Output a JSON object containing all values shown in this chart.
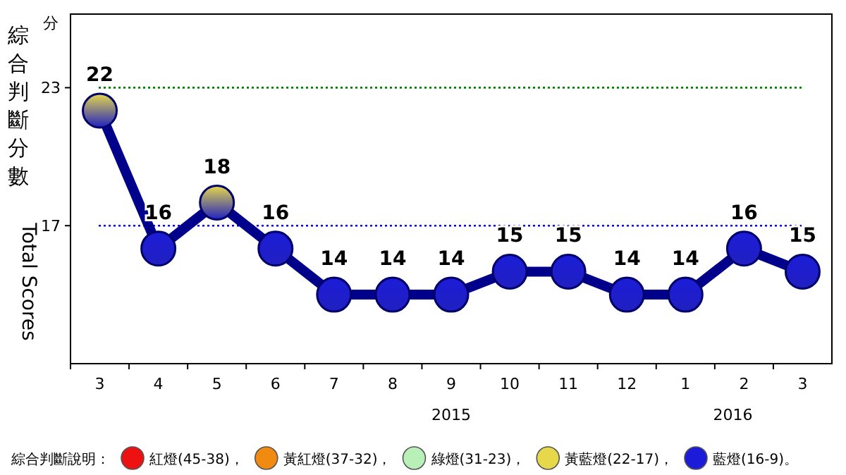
{
  "chart_data": {
    "type": "line",
    "ylabel": "綜合判斷分數",
    "categories": [
      "3",
      "4",
      "5",
      "6",
      "7",
      "8",
      "9",
      "10",
      "11",
      "12",
      "1",
      "2",
      "3"
    ],
    "series": [
      {
        "color": "#00008b",
        "values": [
          22,
          16,
          18,
          16,
          14,
          14,
          14,
          15,
          15,
          14,
          14,
          16,
          15
        ],
        "colors": [
          "#e6d84a",
          "#1c1cd8",
          "#e6d84a",
          "#1c1cd8",
          "#1c1cd8",
          "#1c1cd8",
          "#1c1cd8",
          "#1c1cd8",
          "#1c1cd8",
          "#1c1cd8",
          "#1c1cd8",
          "#1c1cd8",
          "#1c1cd8"
        ]
      }
    ],
    "ylim": [
      11,
      26.2
    ],
    "yticks": [
      17,
      23
    ],
    "marker": "circle",
    "data_labels": true,
    "ref_lines": [
      {
        "axis": "y",
        "value": 23,
        "color": "#008000",
        "line_style": "dotted"
      },
      {
        "axis": "y",
        "value": 17,
        "color": "#0000ff",
        "line_style": "dotted"
      }
    ],
    "annotations": [
      "分",
      "Total Scores",
      "綜合判斷說明：",
      "紅燈(45-38)，",
      "黃紅燈(37-32)，",
      "綠燈(31-23)，",
      "黃藍燈(22-17)，",
      "藍燈(16-9)。",
      "2015",
      "2016"
    ]
  }
}
